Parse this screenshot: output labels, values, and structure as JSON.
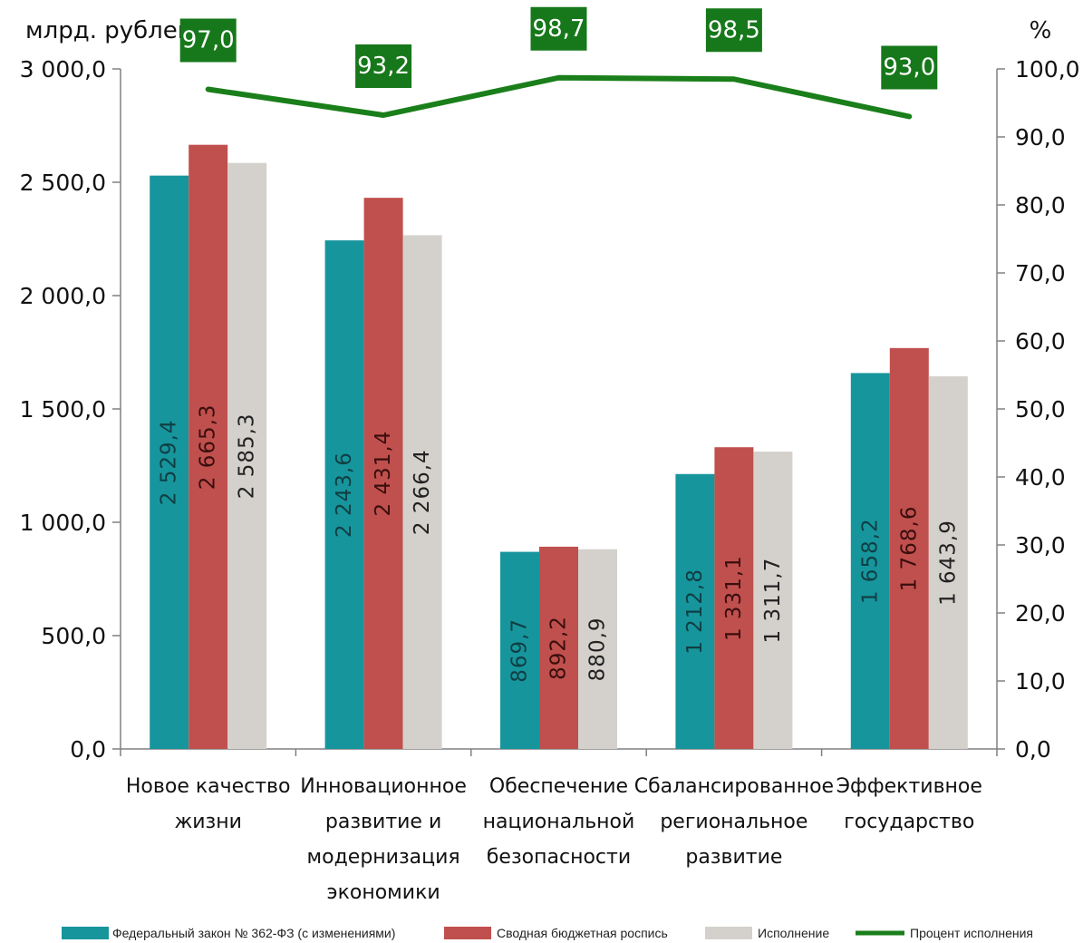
{
  "chart_data": {
    "type": "bar",
    "left_axis_label": "млрд. рублей",
    "right_axis_label": "%",
    "categories": [
      [
        "Новое качество",
        "жизни"
      ],
      [
        "Инновационное",
        "развитие и",
        "модернизация",
        "экономики"
      ],
      [
        "Обеспечение",
        "национальной",
        "безопасности"
      ],
      [
        "Сбалансированное",
        "региональное",
        "развитие"
      ],
      [
        "Эффективное",
        "государство"
      ]
    ],
    "ylim": [
      0,
      3000
    ],
    "y2lim": [
      0,
      100
    ],
    "yticks": [
      "0,0",
      "500,0",
      "1 000,0",
      "1 500,0",
      "2 000,0",
      "2 500,0",
      "3 000,0"
    ],
    "y2ticks": [
      "0,0",
      "10,0",
      "20,0",
      "30,0",
      "40,0",
      "50,0",
      "60,0",
      "70,0",
      "80,0",
      "90,0",
      "100,0"
    ],
    "series": [
      {
        "name": "Федеральный закон № 362-ФЗ  (с изменениями)",
        "color": "#17959c",
        "values": [
          2529.4,
          2243.6,
          869.7,
          1212.8,
          1658.2
        ],
        "labels": [
          "2 529,4",
          "2 243,6",
          "869,7",
          "1 212,8",
          "1 658,2"
        ]
      },
      {
        "name": "Сводная бюджетная роспись",
        "color": "#c0504d",
        "values": [
          2665.3,
          2431.4,
          892.2,
          1331.1,
          1768.6
        ],
        "labels": [
          "2 665,3",
          "2 431,4",
          "892,2",
          "1 331,1",
          "1 768,6"
        ]
      },
      {
        "name": "Исполнение",
        "color": "#d4d1cd",
        "values": [
          2585.3,
          2266.4,
          880.9,
          1311.7,
          1643.9
        ],
        "labels": [
          "2 585,3",
          "2 266,4",
          "880,9",
          "1 311,7",
          "1 643,9"
        ]
      }
    ],
    "line_series": {
      "name": "Процент исполнения",
      "color": "#1a7f1a",
      "axis": "right",
      "values": [
        97.0,
        93.2,
        98.7,
        98.5,
        93.0
      ],
      "labels": [
        "97,0",
        "93,2",
        "98,7",
        "98,5",
        "93,0"
      ]
    },
    "legend_position": "bottom"
  }
}
